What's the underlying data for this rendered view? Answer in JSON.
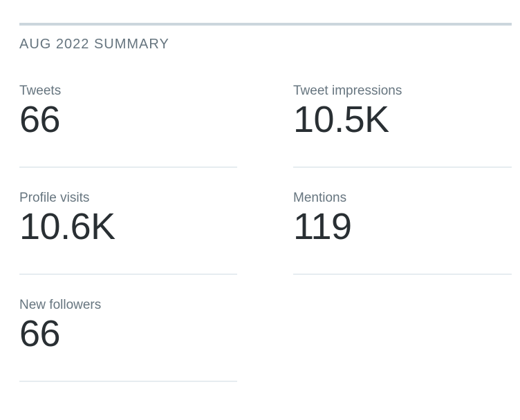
{
  "summary": {
    "title": "AUG 2022 SUMMARY"
  },
  "metrics": [
    {
      "label": "Tweets",
      "value": "66"
    },
    {
      "label": "Tweet impressions",
      "value": "10.5K"
    },
    {
      "label": "Profile visits",
      "value": "10.6K"
    },
    {
      "label": "Mentions",
      "value": "119"
    },
    {
      "label": "New followers",
      "value": "66"
    }
  ],
  "colors": {
    "top_rule": "#ccd6dd",
    "separator": "#e6ecf0",
    "label_text": "#66757f",
    "value_text": "#292f33",
    "background": "#ffffff"
  }
}
